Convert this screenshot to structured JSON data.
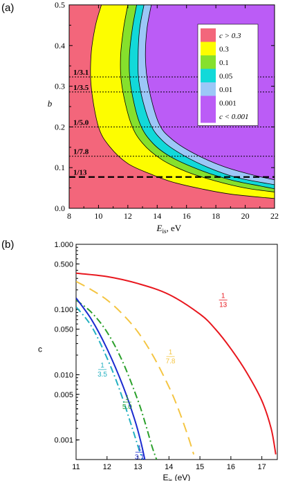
{
  "panels": {
    "a_label": "(a)",
    "b_label": "(b)"
  },
  "chart_data": [
    {
      "type": "area",
      "panel": "(a)",
      "xlabel_main": "E",
      "xlabel_sub": "is",
      "xlabel_unit": ", eV",
      "ylabel": "b",
      "xlim": [
        8,
        22
      ],
      "ylim": [
        0,
        0.5
      ],
      "xticks": [
        "8",
        "10",
        "12",
        "14",
        "16",
        "18",
        "20",
        "22"
      ],
      "yticks": [
        "0.0",
        "0.1",
        "0.2",
        "0.3",
        "0.4",
        "0.5"
      ],
      "colors": {
        "c_gt_0.3": "#f3667b",
        "0.3": "#fdfd00",
        "0.1": "#86e02c",
        "0.05": "#12d9d9",
        "0.01": "#9cc7f7",
        "c_lt_0.001": "#bb5cf6"
      },
      "legend": [
        {
          "label": "c > 0.3",
          "color": "#f3667b"
        },
        {
          "label": "0.3",
          "color": "#fdfd00"
        },
        {
          "label": "0.1",
          "color": "#86e02c"
        },
        {
          "label": "0.05",
          "color": "#12d9d9"
        },
        {
          "label": "0.01",
          "color": "#9cc7f7"
        },
        {
          "label": "0.001",
          "color": "#bb5cf6"
        },
        {
          "label": "c < 0.001",
          "color": "#bb5cf6"
        }
      ],
      "legend_position": "top-right",
      "boundaries": [
        {
          "c": 0.3,
          "points": [
            [
              10.2,
              0.5
            ],
            [
              9.8,
              0.45
            ],
            [
              9.5,
              0.38
            ],
            [
              9.5,
              0.3
            ],
            [
              10.0,
              0.2
            ],
            [
              10.8,
              0.15
            ],
            [
              12.0,
              0.11
            ],
            [
              13.5,
              0.085
            ],
            [
              15.0,
              0.065
            ],
            [
              17.0,
              0.048
            ],
            [
              19.0,
              0.035
            ],
            [
              22.0,
              0.024
            ]
          ]
        },
        {
          "c": 0.1,
          "points": [
            [
              12.0,
              0.5
            ],
            [
              11.7,
              0.44
            ],
            [
              11.5,
              0.37
            ],
            [
              11.6,
              0.3
            ],
            [
              12.2,
              0.21
            ],
            [
              13.0,
              0.16
            ],
            [
              14.3,
              0.12
            ],
            [
              16.0,
              0.09
            ],
            [
              18.0,
              0.067
            ],
            [
              20.0,
              0.05
            ],
            [
              22.0,
              0.04
            ]
          ]
        },
        {
          "c": 0.05,
          "points": [
            [
              12.6,
              0.5
            ],
            [
              12.3,
              0.44
            ],
            [
              12.1,
              0.37
            ],
            [
              12.2,
              0.3
            ],
            [
              12.8,
              0.21
            ],
            [
              13.7,
              0.16
            ],
            [
              15.0,
              0.125
            ],
            [
              17.0,
              0.093
            ],
            [
              19.0,
              0.07
            ],
            [
              21.0,
              0.055
            ],
            [
              22.0,
              0.048
            ]
          ]
        },
        {
          "c": 0.01,
          "points": [
            [
              13.1,
              0.5
            ],
            [
              12.8,
              0.44
            ],
            [
              12.7,
              0.37
            ],
            [
              12.8,
              0.3
            ],
            [
              13.5,
              0.21
            ],
            [
              14.4,
              0.165
            ],
            [
              15.8,
              0.13
            ],
            [
              17.5,
              0.1
            ],
            [
              19.5,
              0.075
            ],
            [
              22.0,
              0.058
            ]
          ]
        },
        {
          "c": 0.001,
          "points": [
            [
              13.6,
              0.5
            ],
            [
              13.3,
              0.44
            ],
            [
              13.2,
              0.37
            ],
            [
              13.4,
              0.3
            ],
            [
              14.1,
              0.21
            ],
            [
              15.0,
              0.17
            ],
            [
              16.5,
              0.135
            ],
            [
              18.5,
              0.103
            ],
            [
              20.5,
              0.082
            ],
            [
              22.0,
              0.07
            ]
          ]
        }
      ],
      "hlines": [
        {
          "label": "1/3.1",
          "y": 0.323,
          "style": "dotted"
        },
        {
          "label": "1/3.5",
          "y": 0.286,
          "style": "dotted"
        },
        {
          "label": "1/5.0",
          "y": 0.2,
          "style": "dotted"
        },
        {
          "label": "1/7.8",
          "y": 0.128,
          "style": "dotted"
        },
        {
          "label": "1/13",
          "y": 0.077,
          "style": "dashed"
        }
      ]
    },
    {
      "type": "line",
      "panel": "(b)",
      "xlabel_main": "E",
      "xlabel_sub": "is",
      "xlabel_unit": " (eV)",
      "ylabel": "c",
      "xlim": [
        11,
        17.5
      ],
      "ylim": [
        0.0005,
        1.0
      ],
      "yscale": "log",
      "xticks": [
        "11",
        "12",
        "13",
        "14",
        "15",
        "16",
        "17"
      ],
      "yticks": [
        "0.001",
        "0.005",
        "0.010",
        "0.050",
        "0.100",
        "0.500",
        "1.000"
      ],
      "series": [
        {
          "label_num": "1",
          "label_den": "13",
          "color": "#e8161d",
          "style": "solid",
          "x": [
            11.0,
            12.0,
            13.0,
            14.0,
            15.0,
            15.5,
            16.0,
            16.5,
            17.0,
            17.3,
            17.45
          ],
          "y": [
            0.36,
            0.32,
            0.25,
            0.17,
            0.085,
            0.05,
            0.025,
            0.011,
            0.004,
            0.0015,
            0.0006
          ]
        },
        {
          "label_num": "1",
          "label_den": "7.8",
          "color": "#f4c542",
          "style": "dashed",
          "x": [
            11.0,
            11.5,
            12.0,
            12.5,
            13.0,
            13.5,
            14.0,
            14.3,
            14.6,
            14.8
          ],
          "y": [
            0.27,
            0.2,
            0.14,
            0.085,
            0.045,
            0.019,
            0.0065,
            0.003,
            0.0012,
            0.0006
          ]
        },
        {
          "label_num": "1",
          "label_den": "5.0",
          "color": "#2aa02a",
          "style": "dashdot",
          "x": [
            11.0,
            11.5,
            12.0,
            12.5,
            13.0,
            13.25,
            13.45,
            13.6
          ],
          "y": [
            0.14,
            0.09,
            0.045,
            0.016,
            0.004,
            0.0017,
            0.0008,
            0.0005
          ]
        },
        {
          "label_num": "1",
          "label_den": "3.5",
          "color": "#22b0c0",
          "style": "dashdot",
          "x": [
            11.0,
            11.5,
            12.0,
            12.4,
            12.8,
            13.0,
            13.15
          ],
          "y": [
            0.11,
            0.055,
            0.018,
            0.006,
            0.0016,
            0.0008,
            0.0005
          ]
        },
        {
          "label_num": "1",
          "label_den": "3.1",
          "color": "#1a2ad0",
          "style": "solid",
          "x": [
            11.0,
            11.5,
            12.0,
            12.5,
            12.9,
            13.1,
            13.22
          ],
          "y": [
            0.15,
            0.07,
            0.025,
            0.007,
            0.002,
            0.0009,
            0.0005
          ]
        }
      ]
    }
  ]
}
